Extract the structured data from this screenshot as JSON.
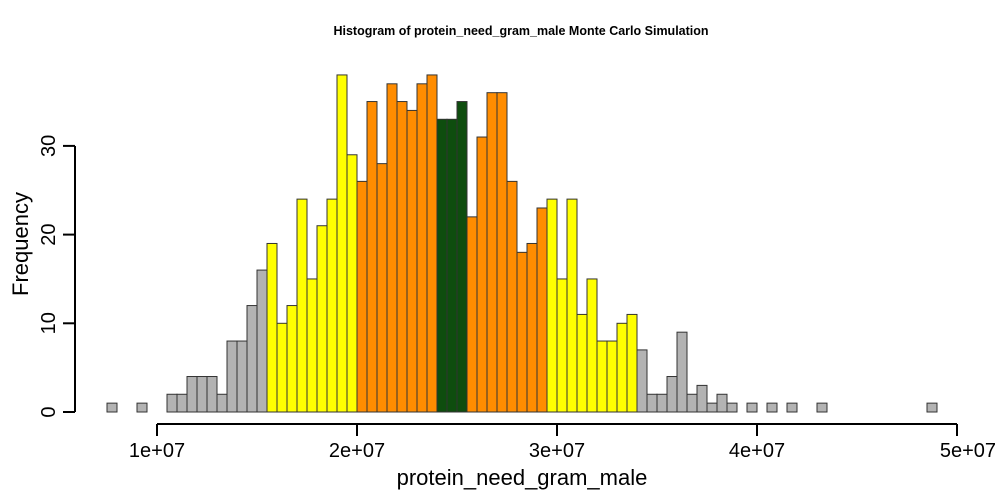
{
  "chart_data": {
    "type": "bar",
    "title": "Histogram of  protein_need_gram_male  Monte Carlo Simulation",
    "xlabel": "protein_need_gram_male",
    "ylabel": "Frequency",
    "bin_start": 7500000,
    "bin_width": 500000,
    "xlim": [
      7500000,
      50000000
    ],
    "ylim": [
      0,
      38
    ],
    "x_ticks": [
      10000000,
      20000000,
      30000000,
      40000000,
      50000000
    ],
    "x_tick_labels": [
      "1e+07",
      "2e+07",
      "3e+07",
      "4e+07",
      "5e+07"
    ],
    "y_ticks": [
      0,
      10,
      20,
      30
    ],
    "y_tick_labels": [
      "0",
      "10",
      "20",
      "30"
    ],
    "values": [
      1,
      0,
      0,
      1,
      0,
      0,
      2,
      2,
      4,
      4,
      4,
      2,
      8,
      8,
      12,
      16,
      19,
      10,
      12,
      24,
      15,
      21,
      24,
      38,
      29,
      26,
      35,
      28,
      37,
      35,
      34,
      37,
      38,
      33,
      33,
      35,
      22,
      31,
      36,
      36,
      26,
      18,
      19,
      23,
      24,
      15,
      24,
      11,
      15,
      8,
      8,
      10,
      11,
      7,
      2,
      2,
      4,
      9,
      2,
      3,
      1,
      2,
      1,
      0,
      1,
      0,
      1,
      0,
      1,
      0,
      0,
      1,
      0,
      0,
      0,
      0,
      0,
      0,
      0,
      0,
      0,
      0,
      1
    ],
    "colors": {
      "gray": "#b3b3b3",
      "yellow": "#ffff00",
      "orange": "#ff8c00",
      "green": "#0e4d0e"
    },
    "color_ranges": [
      {
        "from": 0,
        "to": 15,
        "color": "gray"
      },
      {
        "from": 16,
        "to": 24,
        "color": "yellow"
      },
      {
        "from": 25,
        "to": 32,
        "color": "orange"
      },
      {
        "from": 33,
        "to": 35,
        "color": "green"
      },
      {
        "from": 36,
        "to": 43,
        "color": "orange"
      },
      {
        "from": 44,
        "to": 52,
        "color": "yellow"
      },
      {
        "from": 53,
        "to": 85,
        "color": "gray"
      }
    ],
    "grid": false,
    "legend": "none"
  }
}
